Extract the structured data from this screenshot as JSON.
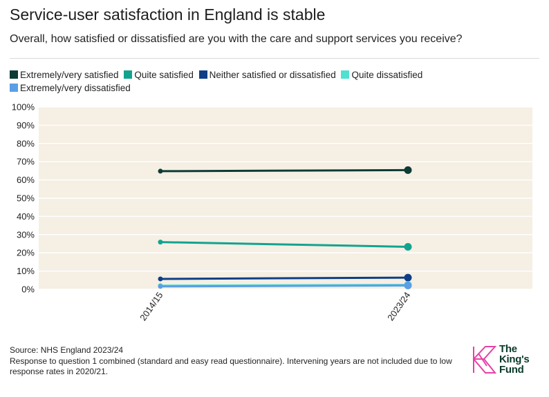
{
  "title": "Service-user satisfaction in England is stable",
  "subtitle": "Overall, how satisfied or dissatisfied are you with the care and support services you receive?",
  "legend": [
    {
      "label": "Extremely/very satisfied",
      "color": "#0d3b35"
    },
    {
      "label": "Quite satisfied",
      "color": "#12a38f"
    },
    {
      "label": "Neither satisfied or dissatisfied",
      "color": "#0e3f87"
    },
    {
      "label": "Quite dissatisfied",
      "color": "#4fe0cf"
    },
    {
      "label": "Extremely/very dissatisfied",
      "color": "#5b9ee6"
    }
  ],
  "footer": {
    "source": "Source: NHS England 2023/24",
    "note": "Response to question 1 combined (standard and easy read questionnaire). Intervening years are not included due to low response rates in 2020/21."
  },
  "logo": {
    "line1": "The",
    "line2": "King's",
    "line3": "Fund"
  },
  "chart_data": {
    "type": "line",
    "title": "Service-user satisfaction in England is stable",
    "xlabel": "",
    "ylabel": "",
    "x": [
      "2014/15",
      "2023/24"
    ],
    "ylim": [
      0,
      100
    ],
    "y_ticks": [
      "0%",
      "10%",
      "20%",
      "30%",
      "40%",
      "50%",
      "60%",
      "70%",
      "80%",
      "90%",
      "100%"
    ],
    "grid": true,
    "background": "#f5efe4",
    "series": [
      {
        "name": "Extremely/very satisfied",
        "color": "#0d3b35",
        "values": [
          64.8,
          65.4
        ]
      },
      {
        "name": "Quite satisfied",
        "color": "#12a38f",
        "values": [
          25.9,
          23.3
        ]
      },
      {
        "name": "Neither satisfied or dissatisfied",
        "color": "#0e3f87",
        "values": [
          5.7,
          6.4
        ]
      },
      {
        "name": "Quite dissatisfied",
        "color": "#4fe0cf",
        "values": [
          2.0,
          2.4
        ]
      },
      {
        "name": "Extremely/very dissatisfied",
        "color": "#5b9ee6",
        "values": [
          1.6,
          2.1
        ]
      }
    ]
  }
}
